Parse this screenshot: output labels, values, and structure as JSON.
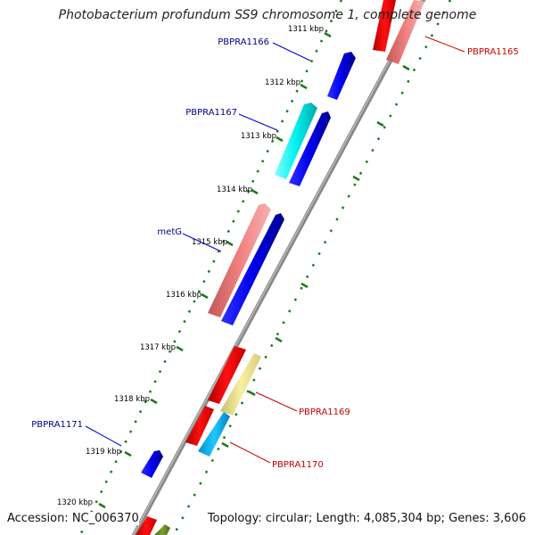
{
  "title": "Photobacterium profundum SS9 chromosome 1, complete genome",
  "footer": {
    "accession": "Accession: NC_006370",
    "info": "Topology: circular; Length: 4,085,304 bp; Genes: 3,606"
  },
  "kbp_ticks": [
    "1311 kbp",
    "1312 kbp",
    "1313 kbp",
    "1314 kbp",
    "1315 kbp",
    "1316 kbp",
    "1317 kbp",
    "1318 kbp",
    "1319 kbp",
    "1320 kbp"
  ],
  "gene_labels": [
    "PBPRA1165",
    "PBPRA1166",
    "PBPRA1167",
    "metG",
    "PBPRA1169",
    "PBPRA1170",
    "PBPRA1171"
  ],
  "colors": {
    "blue": "#0000ee",
    "cyan": "#00e5e5",
    "salmon": "#f08080",
    "red": "#ee0000",
    "yellow": "#f0e68c",
    "skyblue": "#00bfff",
    "olive": "#6b8e23",
    "tick_green": "#1a7a1a",
    "label_blue": "#00008b",
    "label_red": "#cc0000"
  }
}
